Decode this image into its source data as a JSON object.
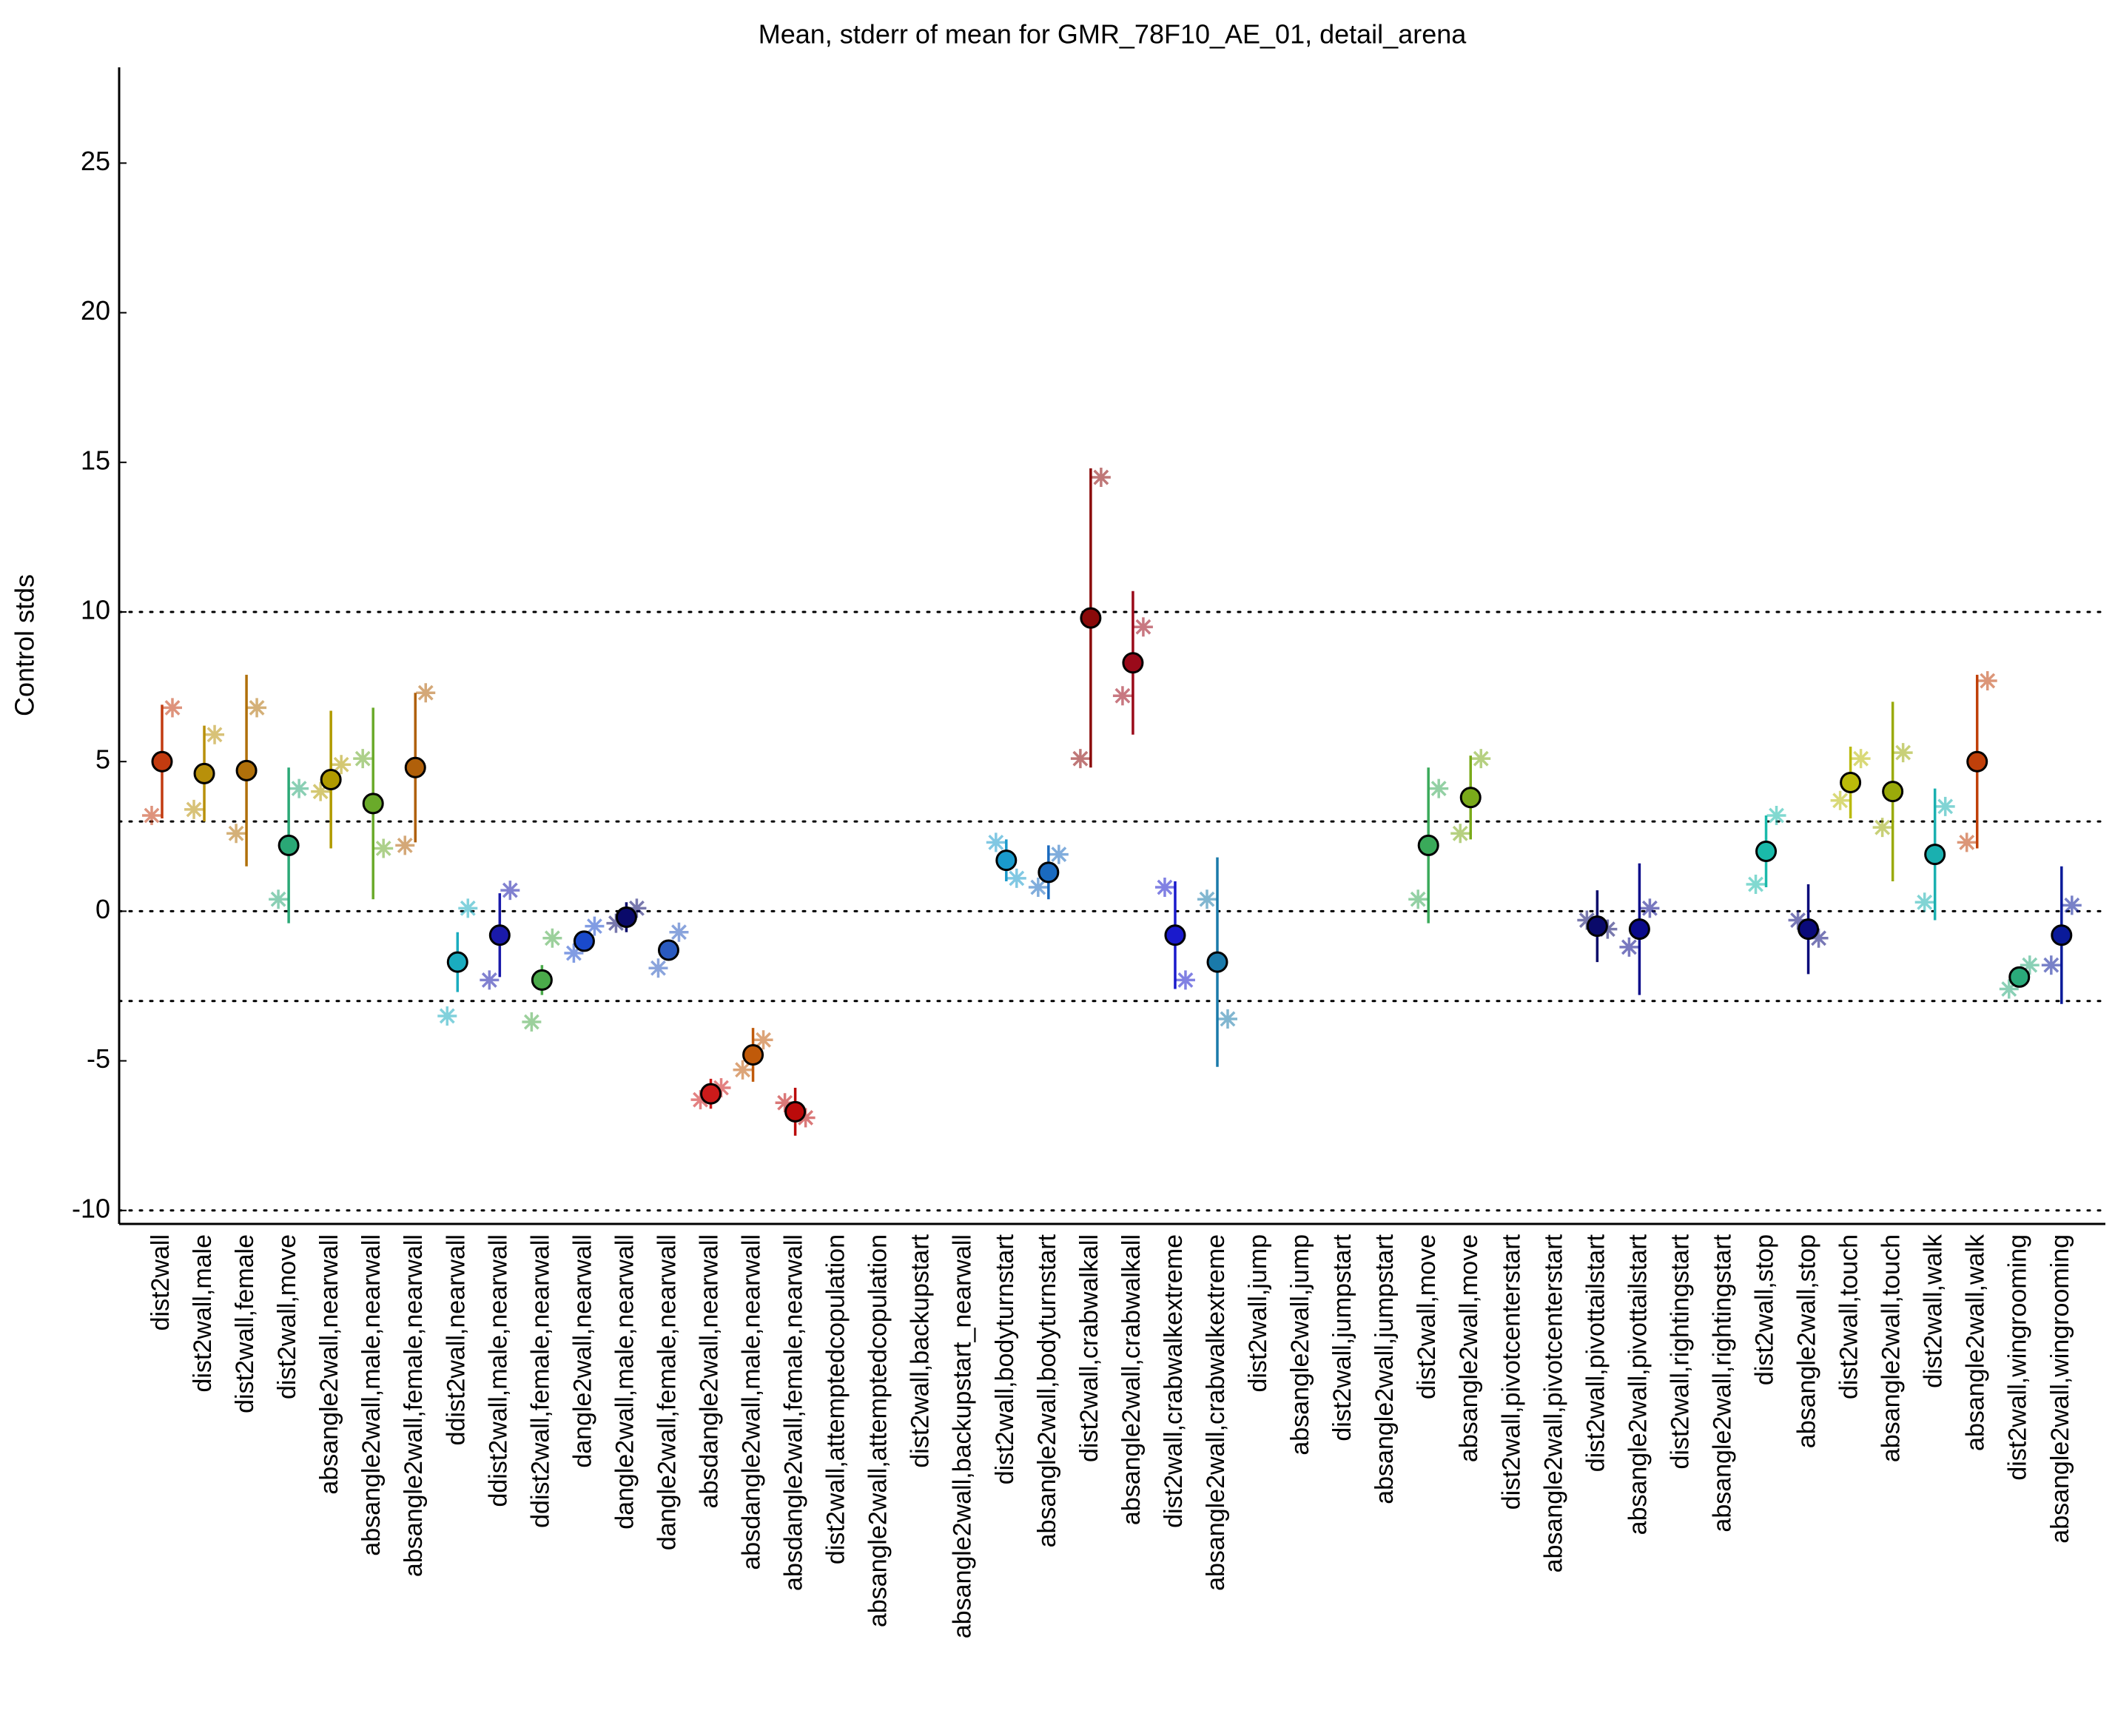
{
  "chart_data": {
    "type": "errorbar",
    "title": "Mean, stderr of mean for GMR_78F10_AE_01, detail_arena",
    "y_label": "Control stds",
    "categories": [
      "dist2wall",
      "dist2wall,male",
      "dist2wall,female",
      "dist2wall,move",
      "absangle2wall,nearwall",
      "absangle2wall,male,nearwall",
      "absangle2wall,female,nearwall",
      "ddist2wall,nearwall",
      "ddist2wall,male,nearwall",
      "ddist2wall,female,nearwall",
      "dangle2wall,nearwall",
      "dangle2wall,male,nearwall",
      "dangle2wall,female,nearwall",
      "absdangle2wall,nearwall",
      "absdangle2wall,male,nearwall",
      "absdangle2wall,female,nearwall",
      "dist2wall,attemptedcopulation",
      "absangle2wall,attemptedcopulation",
      "dist2wall,backupstart",
      "absangle2wall,backupstart_nearwall",
      "dist2wall,bodyturnstart",
      "absangle2wall,bodyturnstart",
      "dist2wall,crabwalkall",
      "absangle2wall,crabwalkall",
      "dist2wall,crabwalkextreme",
      "absangle2wall,crabwalkextreme",
      "dist2wall,jump",
      "absangle2wall,jump",
      "dist2wall,jumpstart",
      "absangle2wall,jumpstart",
      "dist2wall,move",
      "absangle2wall,move",
      "dist2wall,pivotcenterstart",
      "absangle2wall,pivotcenterstart",
      "dist2wall,pivottailstart",
      "absangle2wall,pivottailstart",
      "dist2wall,rightingstart",
      "absangle2wall,rightingstart",
      "dist2wall,stop",
      "absangle2wall,stop",
      "dist2wall,touch",
      "absangle2wall,touch",
      "dist2wall,walk",
      "absangle2wall,walk",
      "dist2wall,wingrooming",
      "absangle2wall,wingrooming"
    ],
    "colors": [
      "#c23b10",
      "#b8900a",
      "#b0700a",
      "#2aa876",
      "#b09a00",
      "#6aaa2a",
      "#b0600a",
      "#1aacbf",
      "#1a1aaa",
      "#4aaa4a",
      "#1a4acc",
      "#0a0a6a",
      "#2a5abf",
      "#cc1a1a",
      "#c05a0a",
      "#bb0a0a",
      "#999999",
      "#999999",
      "#999999",
      "#999999",
      "#1a9acc",
      "#1a6abf",
      "#8a0a0a",
      "#9a0a1a",
      "#1a1acc",
      "#1a7aaa",
      "#999999",
      "#999999",
      "#999999",
      "#999999",
      "#3aaa5a",
      "#7aaa1a",
      "#999999",
      "#999999",
      "#0a0a6a",
      "#0a0a8a",
      "#999999",
      "#999999",
      "#1abaaa",
      "#0a0a7a",
      "#baba0a",
      "#9aaa0a",
      "#1ab0b0",
      "#c0400a",
      "#2aaa7a",
      "#0a1a9a"
    ],
    "values": [
      5.0,
      4.6,
      4.7,
      2.2,
      4.4,
      3.6,
      4.8,
      -1.7,
      -0.8,
      -2.3,
      -1.0,
      -0.2,
      -1.3,
      -6.1,
      -4.8,
      -6.7,
      null,
      null,
      null,
      null,
      1.7,
      1.3,
      9.8,
      8.3,
      -0.8,
      -1.7,
      null,
      null,
      null,
      null,
      2.2,
      3.8,
      null,
      null,
      -0.5,
      -0.6,
      null,
      null,
      2.0,
      -0.6,
      4.3,
      4.0,
      1.9,
      5.0,
      -2.2,
      -0.8
    ],
    "errors": [
      1.9,
      1.6,
      3.2,
      2.6,
      2.3,
      3.2,
      2.5,
      1.0,
      1.4,
      0.5,
      0.3,
      0.5,
      0.3,
      0.5,
      0.9,
      0.8,
      null,
      null,
      null,
      null,
      0.7,
      0.9,
      5.0,
      2.4,
      1.8,
      3.5,
      null,
      null,
      null,
      null,
      2.6,
      1.4,
      null,
      null,
      1.2,
      2.2,
      null,
      null,
      1.2,
      1.5,
      1.2,
      3.0,
      2.2,
      2.9,
      0.3,
      2.3
    ],
    "left_markers": [
      3.2,
      3.4,
      2.6,
      0.4,
      4.0,
      5.1,
      2.2,
      -3.5,
      -2.3,
      -3.7,
      -1.4,
      -0.4,
      -1.9,
      -6.3,
      -5.3,
      -6.4,
      null,
      null,
      null,
      null,
      2.3,
      0.8,
      5.1,
      7.2,
      0.8,
      0.4,
      null,
      null,
      null,
      null,
      0.4,
      2.6,
      null,
      null,
      -0.3,
      -1.2,
      null,
      null,
      0.9,
      -0.3,
      3.7,
      2.8,
      0.3,
      2.3,
      -2.6,
      -1.8
    ],
    "right_markers": [
      6.8,
      5.9,
      6.8,
      4.1,
      4.9,
      2.1,
      7.3,
      0.1,
      0.7,
      -0.9,
      -0.5,
      0.1,
      -0.7,
      -5.9,
      -4.3,
      -6.9,
      null,
      null,
      null,
      null,
      1.1,
      1.9,
      14.5,
      9.5,
      -2.3,
      -3.6,
      null,
      null,
      null,
      null,
      4.1,
      5.1,
      null,
      null,
      -0.6,
      0.1,
      null,
      null,
      3.2,
      -0.9,
      5.1,
      5.3,
      3.5,
      7.7,
      -1.8,
      0.2
    ],
    "reference_lines": [
      10,
      3,
      0,
      -3,
      -10
    ],
    "ylim": [
      -10.45,
      28.2
    ],
    "yticks": [
      -10,
      -5,
      0,
      5,
      10,
      15,
      20,
      25
    ]
  }
}
